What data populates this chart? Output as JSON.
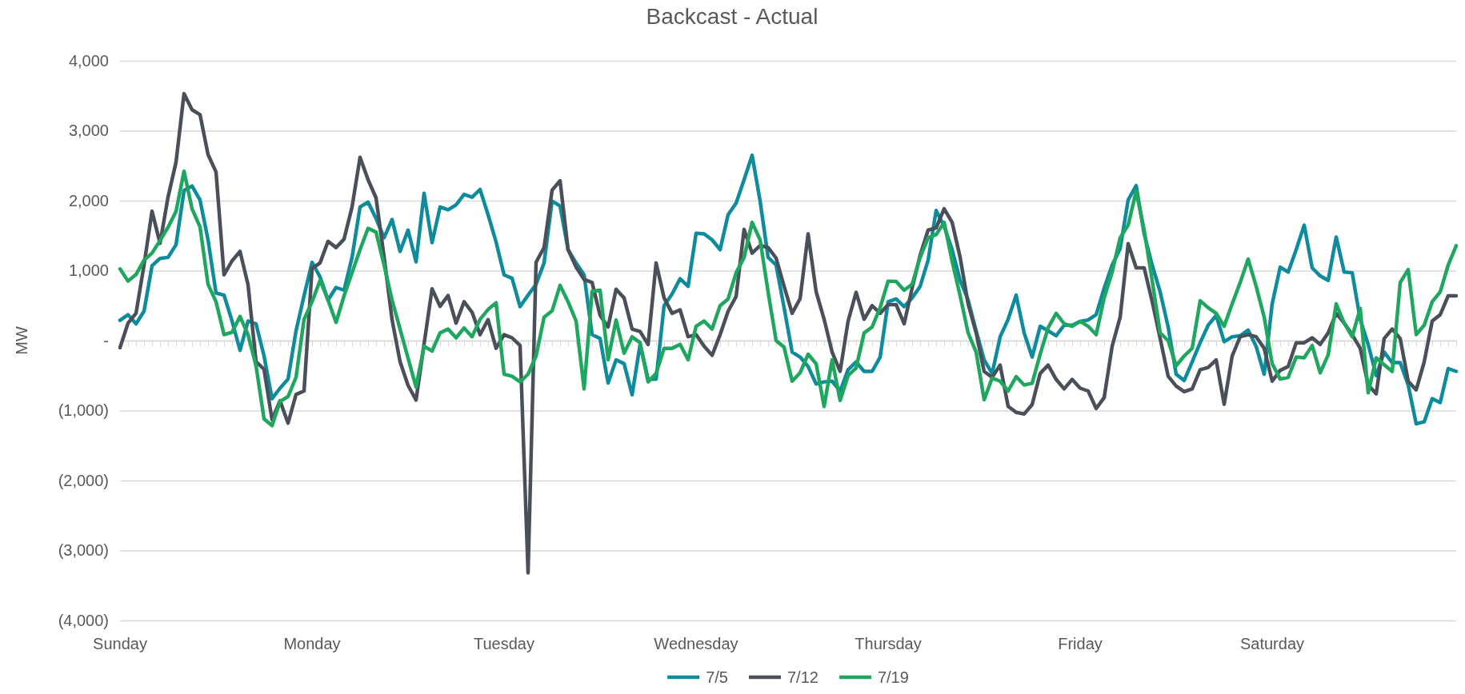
{
  "chart_data": {
    "type": "line",
    "title": "Backcast - Actual",
    "ylabel": "MW",
    "categories": [
      "Sunday",
      null,
      null,
      null,
      null,
      null,
      null,
      null,
      null,
      null,
      null,
      null,
      null,
      null,
      null,
      null,
      null,
      null,
      null,
      null,
      null,
      null,
      null,
      null,
      "Monday",
      null,
      null,
      null,
      null,
      null,
      null,
      null,
      null,
      null,
      null,
      null,
      null,
      null,
      null,
      null,
      null,
      null,
      null,
      null,
      null,
      null,
      null,
      null,
      "Tuesday",
      null,
      null,
      null,
      null,
      null,
      null,
      null,
      null,
      null,
      null,
      null,
      null,
      null,
      null,
      null,
      null,
      null,
      null,
      null,
      null,
      null,
      null,
      null,
      "Wednesday",
      null,
      null,
      null,
      null,
      null,
      null,
      null,
      null,
      null,
      null,
      null,
      null,
      null,
      null,
      null,
      null,
      null,
      null,
      null,
      null,
      null,
      null,
      null,
      "Thursday",
      null,
      null,
      null,
      null,
      null,
      null,
      null,
      null,
      null,
      null,
      null,
      null,
      null,
      null,
      null,
      null,
      null,
      null,
      null,
      null,
      null,
      null,
      null,
      "Friday",
      null,
      null,
      null,
      null,
      null,
      null,
      null,
      null,
      null,
      null,
      null,
      null,
      null,
      null,
      null,
      null,
      null,
      null,
      null,
      null,
      null,
      null,
      null,
      "Saturday",
      null,
      null,
      null,
      null,
      null,
      null,
      null,
      null,
      null,
      null,
      null,
      null,
      null,
      null,
      null,
      null,
      null,
      null,
      null,
      null,
      null,
      null,
      null
    ],
    "series": [
      {
        "name": "7/5",
        "color": "#0e8c9c",
        "values": [
          290,
          370,
          240,
          420,
          1070,
          1175,
          1190,
          1370,
          2145,
          2210,
          2010,
          1440,
          680,
          650,
          280,
          -140,
          280,
          240,
          -220,
          -830,
          -680,
          -550,
          140,
          640,
          1120,
          910,
          580,
          760,
          720,
          1190,
          1910,
          1980,
          1745,
          1470,
          1730,
          1275,
          1580,
          1125,
          2105,
          1400,
          1910,
          1870,
          1940,
          2090,
          2050,
          2160,
          1800,
          1410,
          940,
          890,
          485,
          650,
          805,
          1110,
          1995,
          1925,
          1300,
          1110,
          940,
          85,
          30,
          -605,
          -275,
          -330,
          -775,
          -55,
          -550,
          -550,
          500,
          665,
          885,
          775,
          1535,
          1525,
          1440,
          1300,
          1800,
          1965,
          2300,
          2650,
          1995,
          1190,
          1080,
          470,
          -165,
          -235,
          -370,
          -620,
          -590,
          -580,
          -720,
          -415,
          -305,
          -440,
          -440,
          -235,
          555,
          595,
          485,
          610,
          775,
          1150,
          1860,
          1635,
          1300,
          860,
          580,
          140,
          -275,
          -470,
          55,
          305,
          650,
          110,
          -235,
          205,
          140,
          70,
          220,
          220,
          275,
          295,
          370,
          750,
          1080,
          1315,
          2010,
          2215,
          1525,
          1080,
          695,
          195,
          -480,
          -570,
          -305,
          -30,
          220,
          360,
          -15,
          55,
          70,
          150,
          -85,
          -480,
          525,
          1050,
          980,
          1300,
          1650,
          1040,
          925,
          860,
          1480,
          980,
          970,
          305,
          -55,
          -500,
          -165,
          -315,
          -315,
          -635,
          -1190,
          -1160,
          -830,
          -885,
          -400,
          -440
        ]
      },
      {
        "name": "7/12",
        "color": "#4a5059",
        "values": [
          -100,
          250,
          390,
          1080,
          1850,
          1390,
          2050,
          2550,
          3530,
          3300,
          3230,
          2660,
          2410,
          940,
          1140,
          1275,
          800,
          -300,
          -410,
          -1130,
          -860,
          -1180,
          -770,
          -720,
          1030,
          1110,
          1420,
          1330,
          1450,
          1910,
          2620,
          2300,
          2040,
          1200,
          300,
          -300,
          -640,
          -850,
          -50,
          740,
          490,
          645,
          250,
          555,
          405,
          85,
          300,
          -110,
          85,
          40,
          -70,
          -3320,
          1120,
          1330,
          2150,
          2285,
          1300,
          1050,
          875,
          830,
          360,
          195,
          735,
          610,
          165,
          130,
          -55,
          1110,
          610,
          390,
          440,
          55,
          85,
          -80,
          -210,
          85,
          420,
          630,
          1590,
          1250,
          1360,
          1330,
          1180,
          775,
          390,
          600,
          1525,
          700,
          305,
          -165,
          -440,
          280,
          690,
          305,
          500,
          390,
          515,
          515,
          240,
          750,
          1220,
          1580,
          1610,
          1885,
          1690,
          1190,
          525,
          110,
          -440,
          -525,
          -350,
          -940,
          -1025,
          -1050,
          -915,
          -470,
          -350,
          -555,
          -690,
          -555,
          -680,
          -720,
          -970,
          -815,
          -80,
          335,
          1385,
          1040,
          1040,
          560,
          30,
          -510,
          -650,
          -730,
          -690,
          -415,
          -385,
          -275,
          -910,
          -220,
          55,
          85,
          55,
          -110,
          -580,
          -425,
          -370,
          -30,
          -30,
          40,
          -55,
          110,
          390,
          250,
          85,
          -110,
          -635,
          -760,
          30,
          165,
          30,
          -580,
          -705,
          -305,
          280,
          370,
          640,
          640
        ]
      },
      {
        "name": "7/19",
        "color": "#1fa65f",
        "values": [
          1025,
          850,
          945,
          1150,
          1250,
          1430,
          1620,
          1845,
          2420,
          1885,
          1625,
          805,
          555,
          85,
          120,
          345,
          85,
          -360,
          -1120,
          -1215,
          -870,
          -800,
          -525,
          305,
          555,
          860,
          580,
          260,
          640,
          970,
          1300,
          1605,
          1550,
          1080,
          580,
          165,
          -250,
          -665,
          -80,
          -150,
          110,
          165,
          40,
          180,
          55,
          305,
          445,
          540,
          -480,
          -510,
          -590,
          -480,
          -220,
          335,
          425,
          790,
          555,
          280,
          -690,
          705,
          720,
          -275,
          295,
          -180,
          55,
          -30,
          -590,
          -470,
          -110,
          -110,
          -55,
          -275,
          205,
          280,
          165,
          500,
          595,
          970,
          1190,
          1690,
          1440,
          695,
          0,
          -95,
          -580,
          -460,
          -195,
          -330,
          -940,
          -275,
          -855,
          -500,
          -390,
          110,
          195,
          470,
          850,
          845,
          720,
          805,
          1190,
          1470,
          1515,
          1690,
          1135,
          640,
          110,
          -165,
          -845,
          -535,
          -580,
          -720,
          -515,
          -635,
          -610,
          -195,
          185,
          390,
          240,
          205,
          275,
          205,
          85,
          610,
          980,
          1470,
          1650,
          2135,
          1580,
          860,
          110,
          0,
          -360,
          -220,
          -110,
          570,
          470,
          390,
          205,
          525,
          830,
          1165,
          775,
          335,
          -330,
          -550,
          -525,
          -235,
          -245,
          -70,
          -460,
          -205,
          525,
          250,
          55,
          460,
          -745,
          -245,
          -345,
          -440,
          830,
          1015,
          85,
          220,
          555,
          695,
          1080,
          1355
        ]
      }
    ],
    "ylim": [
      -4000,
      4000
    ],
    "yticks": [
      {
        "value": -4000,
        "label": "(4,000)"
      },
      {
        "value": -3000,
        "label": "(3,000)"
      },
      {
        "value": -2000,
        "label": "(2,000)"
      },
      {
        "value": -1000,
        "label": "(1,000)"
      },
      {
        "value": 0,
        "label": "-"
      },
      {
        "value": 1000,
        "label": "1,000"
      },
      {
        "value": 2000,
        "label": "2,000"
      },
      {
        "value": 3000,
        "label": "3,000"
      },
      {
        "value": 4000,
        "label": "4,000"
      }
    ],
    "grid": "y",
    "legend": "bottom"
  }
}
